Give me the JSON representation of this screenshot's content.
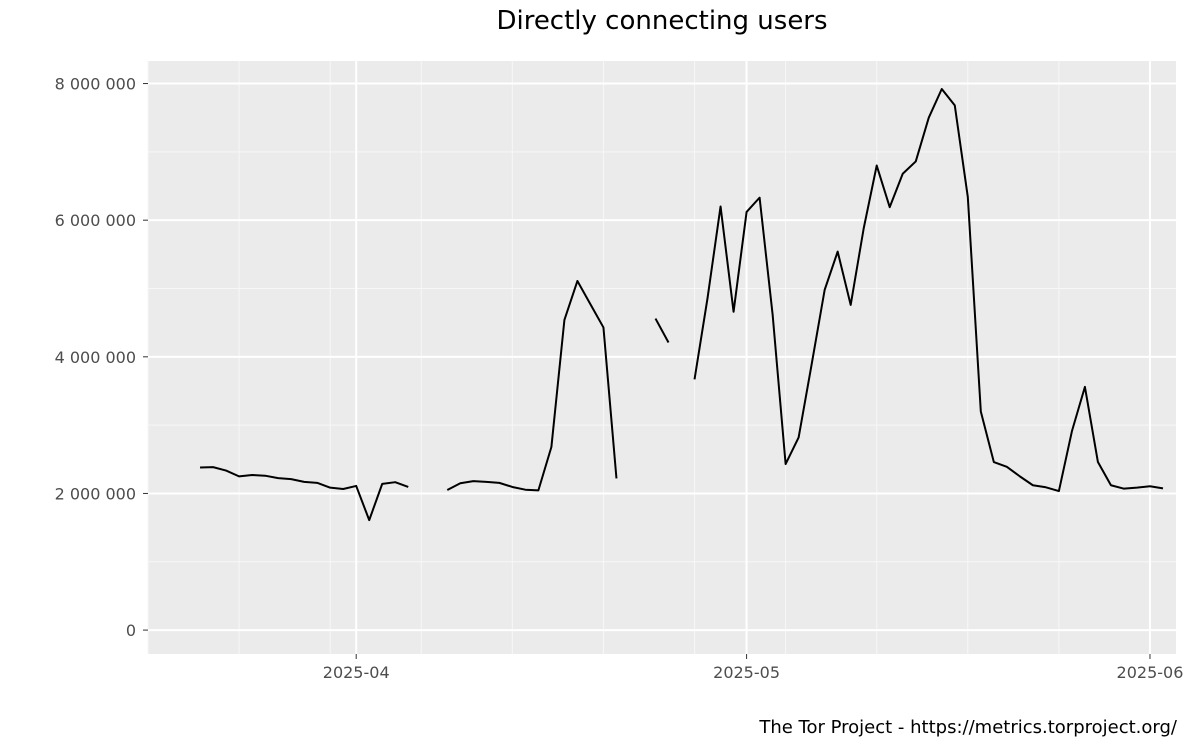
{
  "chart_data": {
    "type": "line",
    "title": "Directly connecting users",
    "xlabel": "",
    "ylabel": "",
    "caption": "The Tor Project - https://metrics.torproject.org/",
    "x_ticks": [
      {
        "date": "2025-04-01",
        "label": "2025-04"
      },
      {
        "date": "2025-05-01",
        "label": "2025-05"
      },
      {
        "date": "2025-06-01",
        "label": "2025-06"
      }
    ],
    "y_ticks": [
      {
        "value": 0,
        "label": "0"
      },
      {
        "value": 2000000,
        "label": "2 000 000"
      },
      {
        "value": 4000000,
        "label": "4 000 000"
      },
      {
        "value": 6000000,
        "label": "6 000 000"
      },
      {
        "value": 8000000,
        "label": "8 000 000"
      }
    ],
    "xlim": [
      "2025-03-16",
      "2025-06-03"
    ],
    "ylim": [
      -350000,
      8330000
    ],
    "grid": true,
    "series": [
      {
        "color": "#000000",
        "points": [
          [
            "2025-03-20",
            2380000
          ],
          [
            "2025-03-21",
            2385000
          ],
          [
            "2025-03-22",
            2335000
          ],
          [
            "2025-03-23",
            2250000
          ],
          [
            "2025-03-24",
            2270000
          ],
          [
            "2025-03-25",
            2260000
          ],
          [
            "2025-03-26",
            2225000
          ],
          [
            "2025-03-27",
            2210000
          ],
          [
            "2025-03-28",
            2170000
          ],
          [
            "2025-03-29",
            2155000
          ],
          [
            "2025-03-30",
            2085000
          ],
          [
            "2025-03-31",
            2065000
          ],
          [
            "2025-04-01",
            2110000
          ],
          [
            "2025-04-02",
            1610000
          ],
          [
            "2025-04-03",
            2140000
          ],
          [
            "2025-04-04",
            2165000
          ],
          [
            "2025-04-05",
            2095000
          ],
          [
            "2025-04-06",
            null
          ],
          [
            "2025-04-07",
            null
          ],
          [
            "2025-04-08",
            2050000
          ],
          [
            "2025-04-09",
            2150000
          ],
          [
            "2025-04-10",
            2180000
          ],
          [
            "2025-04-11",
            2170000
          ],
          [
            "2025-04-12",
            2155000
          ],
          [
            "2025-04-13",
            2095000
          ],
          [
            "2025-04-14",
            2055000
          ],
          [
            "2025-04-15",
            2045000
          ],
          [
            "2025-04-16",
            2680000
          ],
          [
            "2025-04-17",
            4540000
          ],
          [
            "2025-04-18",
            5110000
          ],
          [
            "2025-04-19",
            4770000
          ],
          [
            "2025-04-20",
            4430000
          ],
          [
            "2025-04-21",
            2220000
          ],
          [
            "2025-04-22",
            null
          ],
          [
            "2025-04-23",
            null
          ],
          [
            "2025-04-24",
            4560000
          ],
          [
            "2025-04-25",
            4210000
          ],
          [
            "2025-04-26",
            null
          ],
          [
            "2025-04-27",
            3670000
          ],
          [
            "2025-04-28",
            4860000
          ],
          [
            "2025-04-29",
            6200000
          ],
          [
            "2025-04-30",
            4660000
          ],
          [
            "2025-05-01",
            6120000
          ],
          [
            "2025-05-02",
            6330000
          ],
          [
            "2025-05-03",
            4620000
          ],
          [
            "2025-05-04",
            2430000
          ],
          [
            "2025-05-05",
            2820000
          ],
          [
            "2025-05-06",
            3890000
          ],
          [
            "2025-05-07",
            4980000
          ],
          [
            "2025-05-08",
            5540000
          ],
          [
            "2025-05-09",
            4760000
          ],
          [
            "2025-05-10",
            5880000
          ],
          [
            "2025-05-11",
            6800000
          ],
          [
            "2025-05-12",
            6190000
          ],
          [
            "2025-05-13",
            6680000
          ],
          [
            "2025-05-14",
            6860000
          ],
          [
            "2025-05-15",
            7500000
          ],
          [
            "2025-05-16",
            7920000
          ],
          [
            "2025-05-17",
            7680000
          ],
          [
            "2025-05-18",
            6340000
          ],
          [
            "2025-05-19",
            3200000
          ],
          [
            "2025-05-20",
            2460000
          ],
          [
            "2025-05-21",
            2390000
          ],
          [
            "2025-05-22",
            2250000
          ],
          [
            "2025-05-23",
            2120000
          ],
          [
            "2025-05-24",
            2090000
          ],
          [
            "2025-05-25",
            2035000
          ],
          [
            "2025-05-26",
            2910000
          ],
          [
            "2025-05-27",
            3560000
          ],
          [
            "2025-05-28",
            2460000
          ],
          [
            "2025-05-29",
            2120000
          ],
          [
            "2025-05-30",
            2070000
          ],
          [
            "2025-05-31",
            2085000
          ],
          [
            "2025-06-01",
            2105000
          ],
          [
            "2025-06-02",
            2075000
          ]
        ]
      }
    ],
    "colors": {
      "panel": "#ebebeb",
      "grid_major": "#ffffff",
      "grid_minor": "#f7f7f7",
      "tick": "#333333",
      "tick_label": "#4d4d4d"
    }
  }
}
